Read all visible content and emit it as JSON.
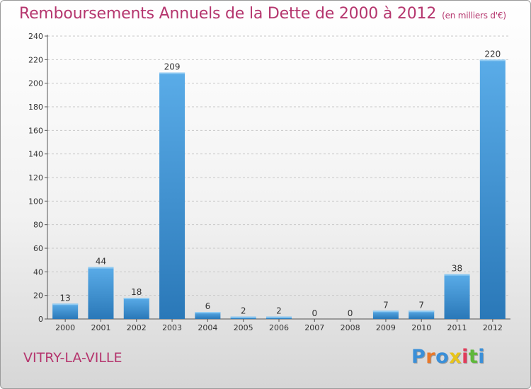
{
  "title": "Remboursements Annuels de la Dette de 2000 à 2012",
  "subtitle": "(en milliers d'€)",
  "city": "VITRY-LA-VILLE",
  "logo": {
    "letters": [
      "P",
      "r",
      "o",
      "x",
      "i",
      "t",
      "i"
    ]
  },
  "colors": {
    "title": "#b5366e",
    "bar_light": "#5aace8",
    "bar_dark": "#2a78b8",
    "logo": [
      "#3a8fd8",
      "#e8782a",
      "#3a8fd8",
      "#e8c41a",
      "#e23b5a",
      "#5fb83a",
      "#3a8fd8"
    ]
  },
  "chart_data": {
    "type": "bar",
    "categories": [
      "2000",
      "2001",
      "2002",
      "2003",
      "2004",
      "2005",
      "2006",
      "2007",
      "2008",
      "2009",
      "2010",
      "2011",
      "2012"
    ],
    "values": [
      13,
      44,
      18,
      209,
      6,
      2,
      2,
      0,
      0,
      7,
      7,
      38,
      220
    ],
    "title": "Remboursements Annuels de la Dette de 2000 à 2012",
    "subtitle": "(en milliers d'€)",
    "ylim": [
      0,
      240
    ],
    "yticks": [
      0,
      20,
      40,
      60,
      80,
      100,
      120,
      140,
      160,
      180,
      200,
      220,
      240
    ],
    "grid": true
  }
}
